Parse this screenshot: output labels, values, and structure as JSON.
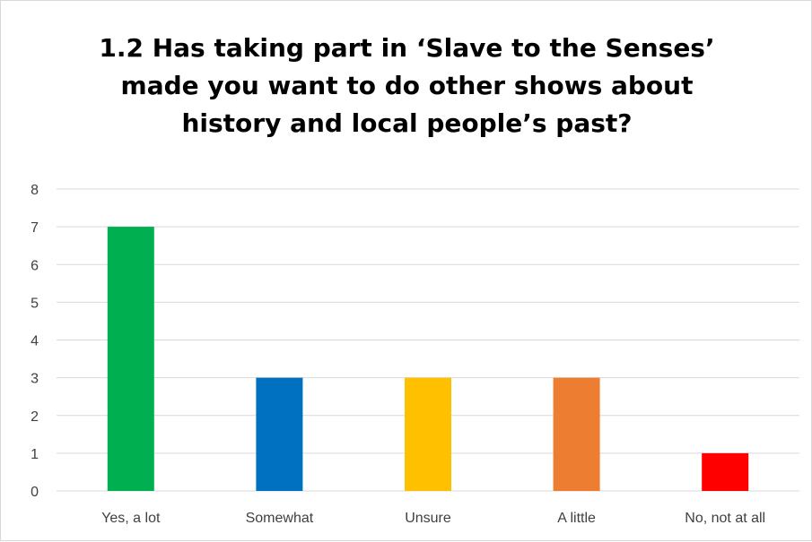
{
  "chart_data": {
    "type": "bar",
    "title": "1.2 Has taking part in ‘Slave to the Senses’ made you want to do other shows about history and local people’s past?",
    "categories": [
      "Yes, a lot",
      "Somewhat",
      "Unsure",
      "A little",
      "No, not at all"
    ],
    "values": [
      7,
      3,
      3,
      3,
      1
    ],
    "bar_colors": [
      "#00b050",
      "#0070c0",
      "#ffc000",
      "#ed7d31",
      "#ff0000"
    ],
    "ylim": [
      0,
      8
    ],
    "yticks": [
      "0",
      "1",
      "2",
      "3",
      "4",
      "5",
      "6",
      "7",
      "8"
    ],
    "xlabel": "",
    "ylabel": "",
    "grid": true,
    "legend": "none"
  },
  "colors": {
    "gridline": "#d9d9d9",
    "tick_text": "#404040",
    "title": "#000000"
  }
}
